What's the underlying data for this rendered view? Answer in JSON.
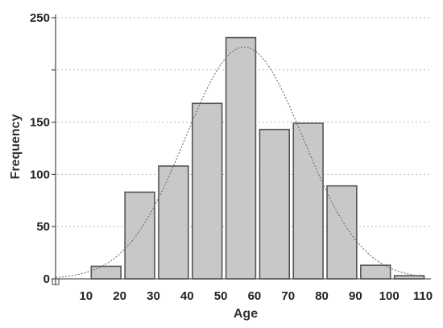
{
  "chart_data": {
    "type": "bar",
    "xlabel": "Age",
    "ylabel": "Frequency",
    "ylim": [
      0,
      250
    ],
    "xlim": [
      0,
      110
    ],
    "y_ticks": [
      {
        "value": 0,
        "label": "0"
      },
      {
        "value": 50,
        "label": "50"
      },
      {
        "value": 100,
        "label": "100"
      },
      {
        "value": 150,
        "label": "150"
      },
      {
        "value": 250,
        "label": "250"
      }
    ],
    "grid_values": [
      50,
      100,
      150,
      200,
      250
    ],
    "x_ticks": [
      10,
      20,
      30,
      40,
      50,
      60,
      70,
      80,
      90,
      100,
      110
    ],
    "bins": [
      {
        "start": 10,
        "end": 20,
        "value": 12
      },
      {
        "start": 20,
        "end": 30,
        "value": 83
      },
      {
        "start": 30,
        "end": 40,
        "value": 108
      },
      {
        "start": 40,
        "end": 50,
        "value": 168
      },
      {
        "start": 50,
        "end": 60,
        "value": 231
      },
      {
        "start": 60,
        "end": 70,
        "value": 143
      },
      {
        "start": 70,
        "end": 80,
        "value": 149
      },
      {
        "start": 80,
        "end": 90,
        "value": 89
      },
      {
        "start": 90,
        "end": 100,
        "value": 13
      },
      {
        "start": 100,
        "end": 110,
        "value": 3
      }
    ],
    "fit_curve": {
      "type": "normal",
      "mean": 56,
      "sd": 17.5,
      "peak": 222,
      "x_range": [
        0,
        110
      ]
    },
    "grid": true
  }
}
